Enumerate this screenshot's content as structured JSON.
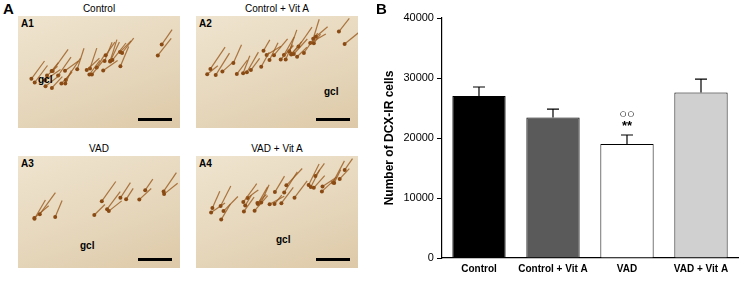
{
  "figure": {
    "panel_labels": [
      "A",
      "B"
    ],
    "images": [
      {
        "panel": "A1",
        "title": "Control",
        "region": "gcl"
      },
      {
        "panel": "A2",
        "title": "Control + Vit A",
        "region": "gcl"
      },
      {
        "panel": "A3",
        "title": "VAD",
        "region": "gcl"
      },
      {
        "panel": "A4",
        "title": "VAD + Vit A",
        "region": "gcl"
      }
    ]
  },
  "chart_data": {
    "type": "bar",
    "y_label": "Number of DCX-IR cells",
    "categories": [
      "Control",
      "Control + Vit A",
      "VAD",
      "VAD + Vit A"
    ],
    "values": [
      27000,
      23400,
      19000,
      27600
    ],
    "errors": [
      1500,
      1400,
      1500,
      2200
    ],
    "colors": [
      "#000000",
      "#5a5a5a",
      "#ffffff",
      "#d0d0d0"
    ],
    "ylim": [
      0,
      40000
    ],
    "yticks": [
      0,
      10000,
      20000,
      30000,
      40000
    ],
    "grid": false,
    "annotations": [
      {
        "category": "VAD",
        "text": "○○"
      },
      {
        "category": "VAD",
        "text": "**"
      }
    ]
  }
}
